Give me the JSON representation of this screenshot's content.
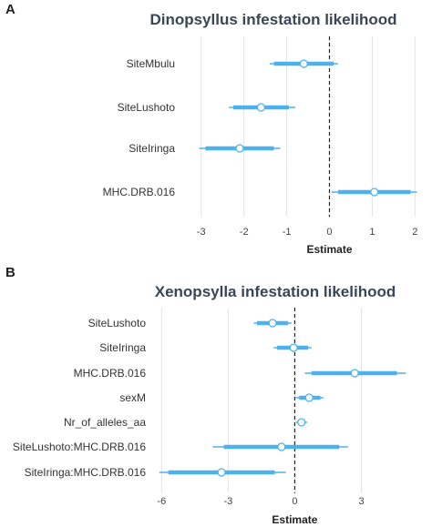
{
  "chart_data": [
    {
      "type": "dot-whisker",
      "panel_label": "A",
      "title": "Dinopsyllus infestation likelihood",
      "xlabel": "Estimate",
      "ylabel": "",
      "xlim": [
        -3.4,
        2.1
      ],
      "x_ticks": [
        -3,
        -2,
        -1,
        0,
        1,
        2
      ],
      "x_tick_labels": [
        "-3",
        "-2",
        "-1",
        "0",
        "1",
        "2"
      ],
      "reference_line": 0,
      "grid": "vertical",
      "color": "#4db2ec",
      "terms": [
        {
          "label": "SiteMbulu",
          "estimate": -0.6,
          "inner": [
            -1.3,
            0.1
          ],
          "outer": [
            -1.4,
            0.2
          ]
        },
        {
          "label": "SiteLushoto",
          "estimate": -1.6,
          "inner": [
            -2.25,
            -0.95
          ],
          "outer": [
            -2.35,
            -0.8
          ]
        },
        {
          "label": "SiteIringa",
          "estimate": -2.1,
          "inner": [
            -2.9,
            -1.3
          ],
          "outer": [
            -3.05,
            -1.15
          ]
        },
        {
          "label": "MHC.DRB.016",
          "estimate": 1.05,
          "inner": [
            0.2,
            1.9
          ],
          "outer": [
            0.05,
            2.05
          ]
        }
      ]
    },
    {
      "type": "dot-whisker",
      "panel_label": "B",
      "title": "Xenopsylla infestation likelihood",
      "xlabel": "Estimate",
      "ylabel": "",
      "xlim": [
        -6.3,
        6.1
      ],
      "x_ticks": [
        -6,
        -3,
        0,
        3
      ],
      "x_tick_labels": [
        "-6",
        "-3",
        "0",
        "3"
      ],
      "reference_line": 0,
      "grid": "vertical",
      "color": "#4db2ec",
      "terms": [
        {
          "label": "SiteLushoto",
          "estimate": -1.0,
          "inner": [
            -1.7,
            -0.3
          ],
          "outer": [
            -1.85,
            -0.15
          ]
        },
        {
          "label": "SiteIringa",
          "estimate": -0.05,
          "inner": [
            -0.8,
            0.6
          ],
          "outer": [
            -0.95,
            0.75
          ]
        },
        {
          "label": "MHC.DRB.016",
          "estimate": 2.7,
          "inner": [
            0.75,
            4.6
          ],
          "outer": [
            0.45,
            5.0
          ]
        },
        {
          "label": "sexM",
          "estimate": 0.65,
          "inner": [
            0.2,
            1.15
          ],
          "outer": [
            0.05,
            1.3
          ]
        },
        {
          "label": "Nr_of_alleles_aa",
          "estimate": 0.3,
          "inner": [
            0.15,
            0.45
          ],
          "outer": [
            0.05,
            0.55
          ]
        },
        {
          "label": "SiteLushoto:MHC.DRB.016",
          "estimate": -0.6,
          "inner": [
            -3.2,
            2.0
          ],
          "outer": [
            -3.7,
            2.4
          ]
        },
        {
          "label": "SiteIringa:MHC.DRB.016",
          "estimate": -3.3,
          "inner": [
            -5.7,
            -0.9
          ],
          "outer": [
            -6.1,
            -0.4
          ]
        }
      ]
    }
  ]
}
